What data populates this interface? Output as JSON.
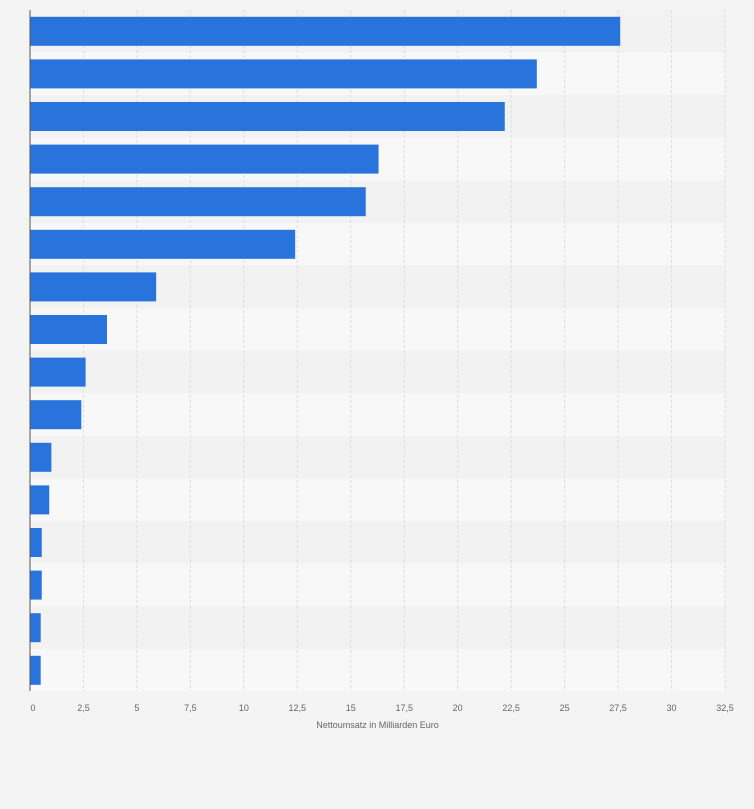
{
  "chart_data": {
    "type": "bar",
    "orientation": "horizontal",
    "title": "",
    "xlabel": "Nettoumsatz in Milliarden Euro",
    "ylabel": "",
    "xlim": [
      0,
      32.5
    ],
    "xticks": [
      "0",
      "2,5",
      "5",
      "7,5",
      "10",
      "12,5",
      "15",
      "17,5",
      "20",
      "22,5",
      "25",
      "27,5",
      "30",
      "32,5"
    ],
    "values": [
      27.6,
      23.7,
      22.2,
      16.3,
      15.7,
      12.4,
      5.9,
      3.6,
      2.6,
      2.4,
      1.0,
      0.9,
      0.55,
      0.55,
      0.5,
      0.5
    ],
    "grid": true,
    "legend": "none",
    "colors": {
      "bar": "#2874dc",
      "band_dark": "#f2f2f2",
      "band_light": "#f8f8f8",
      "grid": "#dddddd",
      "axis": "#555555",
      "text": "#666666"
    }
  }
}
